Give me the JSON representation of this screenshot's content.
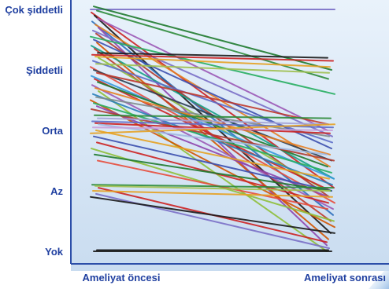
{
  "chart_data": {
    "type": "line",
    "title": "",
    "xlabel": "",
    "ylabel": "",
    "categories": [
      "Ameliyat öncesi",
      "Ameliyat sonrası"
    ],
    "y_levels": [
      "Yok",
      "Az",
      "Orta",
      "Şiddetli",
      "Çok şiddetli"
    ],
    "ylim": [
      0,
      4
    ],
    "grid": false,
    "legend": "none",
    "series": [
      {
        "values": [
          4.0,
          4.0
        ],
        "color": "#7a6fc7"
      },
      {
        "values": [
          4.05,
          3.0
        ],
        "color": "#1f7a2e"
      },
      {
        "values": [
          3.98,
          2.85
        ],
        "color": "#2e8b3a"
      },
      {
        "values": [
          3.95,
          1.05
        ],
        "color": "#cc2222"
      },
      {
        "values": [
          3.9,
          0.3
        ],
        "color": "#1a1a1a"
      },
      {
        "values": [
          3.85,
          2.0
        ],
        "color": "#9b59b6"
      },
      {
        "values": [
          3.8,
          0.6
        ],
        "color": "#2c6fbb"
      },
      {
        "values": [
          3.75,
          1.4
        ],
        "color": "#e67e22"
      },
      {
        "values": [
          3.7,
          0.1
        ],
        "color": "#8e44ad"
      },
      {
        "values": [
          3.65,
          1.9
        ],
        "color": "#7a6fc7"
      },
      {
        "values": [
          3.6,
          0.9
        ],
        "color": "#b03a2e"
      },
      {
        "values": [
          3.55,
          2.6
        ],
        "color": "#27ae60"
      },
      {
        "values": [
          3.5,
          1.7
        ],
        "color": "#3c4fae"
      },
      {
        "values": [
          3.45,
          0.2
        ],
        "color": "#d35400"
      },
      {
        "values": [
          3.4,
          1.2
        ],
        "color": "#16a085"
      },
      {
        "values": [
          3.35,
          0.5
        ],
        "color": "#c0392b"
      },
      {
        "values": [
          3.28,
          3.2
        ],
        "color": "#1a1a1a"
      },
      {
        "values": [
          3.25,
          3.15
        ],
        "color": "#cc2222"
      },
      {
        "values": [
          3.22,
          3.05
        ],
        "color": "#e6a122"
      },
      {
        "values": [
          3.2,
          1.0
        ],
        "color": "#8ebf3a"
      },
      {
        "values": [
          3.15,
          1.8
        ],
        "color": "#5d6dc9"
      },
      {
        "values": [
          3.1,
          2.95
        ],
        "color": "#a0c050"
      },
      {
        "values": [
          3.05,
          0.8
        ],
        "color": "#e74c3c"
      },
      {
        "values": [
          3.0,
          1.5
        ],
        "color": "#2c3e50"
      },
      {
        "values": [
          2.95,
          2.1
        ],
        "color": "#c0392b"
      },
      {
        "values": [
          2.9,
          1.2
        ],
        "color": "#3498db"
      },
      {
        "values": [
          2.85,
          1.0
        ],
        "color": "#cc2222"
      },
      {
        "values": [
          2.8,
          1.4
        ],
        "color": "#1f7a2e"
      },
      {
        "values": [
          2.75,
          0.7
        ],
        "color": "#9b59b6"
      },
      {
        "values": [
          2.7,
          1.6
        ],
        "color": "#e67e22"
      },
      {
        "values": [
          2.65,
          0.0
        ],
        "color": "#8ebf3a"
      },
      {
        "values": [
          2.6,
          1.1
        ],
        "color": "#2980b9"
      },
      {
        "values": [
          2.55,
          1.9
        ],
        "color": "#7f8c8d"
      },
      {
        "values": [
          2.5,
          0.4
        ],
        "color": "#d35400"
      },
      {
        "values": [
          2.45,
          1.3
        ],
        "color": "#27ae60"
      },
      {
        "values": [
          2.4,
          0.9
        ],
        "color": "#8e44ad"
      },
      {
        "values": [
          2.35,
          1.5
        ],
        "color": "#b03a2e"
      },
      {
        "values": [
          2.25,
          2.2
        ],
        "color": "#2e8b3a"
      },
      {
        "values": [
          2.2,
          2.1
        ],
        "color": "#a3a3d6"
      },
      {
        "values": [
          2.15,
          2.05
        ],
        "color": "#5d6dc9"
      },
      {
        "values": [
          2.12,
          1.95
        ],
        "color": "#cc2222"
      },
      {
        "values": [
          2.1,
          1.6
        ],
        "color": "#9fb7e0"
      },
      {
        "values": [
          2.05,
          2.0
        ],
        "color": "#c9a0dc"
      },
      {
        "values": [
          2.0,
          1.2
        ],
        "color": "#e6a122"
      },
      {
        "values": [
          1.95,
          2.1
        ],
        "color": "#e6a122"
      },
      {
        "values": [
          1.9,
          1.0
        ],
        "color": "#3c4fae"
      },
      {
        "values": [
          1.8,
          0.8
        ],
        "color": "#cc2222"
      },
      {
        "values": [
          1.7,
          0.5
        ],
        "color": "#8ebf3a"
      },
      {
        "values": [
          1.6,
          1.0
        ],
        "color": "#1f7a2e"
      },
      {
        "values": [
          1.5,
          0.7
        ],
        "color": "#e74c3c"
      },
      {
        "values": [
          1.1,
          1.05
        ],
        "color": "#2e8b3a"
      },
      {
        "values": [
          1.08,
          1.0
        ],
        "color": "#a0c050"
      },
      {
        "values": [
          1.05,
          0.15
        ],
        "color": "#cc2222"
      },
      {
        "values": [
          1.0,
          0.9
        ],
        "color": "#e6a122"
      },
      {
        "values": [
          0.95,
          0.05
        ],
        "color": "#7a6fc7"
      },
      {
        "values": [
          0.9,
          0.3
        ],
        "color": "#1a1a1a"
      },
      {
        "values": [
          0.0,
          0.0
        ],
        "color": "#1a1a1a"
      },
      {
        "values": [
          0.02,
          0.02
        ],
        "color": "#111111"
      }
    ]
  }
}
